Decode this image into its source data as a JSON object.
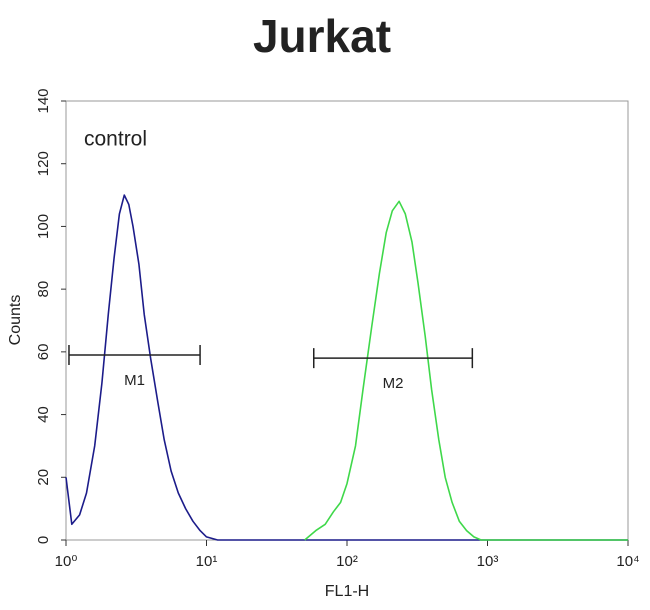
{
  "chart_data": {
    "type": "histogram-line",
    "title": "Jurkat",
    "x_label": "FL1-H",
    "y_label": "Counts",
    "annotation": "control",
    "xscale": "log",
    "xlim": [
      1,
      10000
    ],
    "xticks": [
      {
        "value": 1,
        "label": "10⁰"
      },
      {
        "value": 10,
        "label": "10¹"
      },
      {
        "value": 100,
        "label": "10²"
      },
      {
        "value": 1000,
        "label": "10³"
      },
      {
        "value": 10000,
        "label": "10⁴"
      }
    ],
    "ylim": [
      0,
      140
    ],
    "yticks": [
      0,
      20,
      40,
      60,
      80,
      100,
      120,
      140
    ],
    "series": [
      {
        "color": "#1c1c8a",
        "x": [
          1.0,
          1.1,
          1.25,
          1.4,
          1.6,
          1.8,
          2.0,
          2.2,
          2.4,
          2.6,
          2.8,
          3.0,
          3.3,
          3.6,
          4.0,
          4.5,
          5.0,
          5.6,
          6.3,
          7.1,
          8.0,
          9.0,
          10,
          12,
          20,
          50,
          100,
          1000,
          10000
        ],
        "values": [
          20,
          5,
          8,
          15,
          30,
          50,
          72,
          90,
          104,
          110,
          107,
          100,
          88,
          72,
          58,
          44,
          32,
          22,
          15,
          10,
          6,
          3,
          1,
          0,
          0,
          0,
          0,
          0,
          0
        ]
      },
      {
        "color": "#3fd84a",
        "x": [
          50,
          60,
          70,
          80,
          90,
          100,
          115,
          130,
          150,
          170,
          190,
          210,
          235,
          260,
          290,
          320,
          360,
          400,
          450,
          500,
          560,
          630,
          710,
          800,
          900,
          1000,
          10000
        ],
        "values": [
          0,
          3,
          5,
          9,
          12,
          18,
          30,
          48,
          68,
          85,
          98,
          105,
          108,
          104,
          95,
          82,
          65,
          48,
          32,
          20,
          12,
          6,
          3,
          1,
          0,
          0,
          0
        ]
      }
    ],
    "markers": [
      {
        "label": "M1",
        "x": [
          1.05,
          9
        ],
        "y": 59
      },
      {
        "label": "M2",
        "x": [
          58,
          780
        ],
        "y": 58
      }
    ]
  }
}
